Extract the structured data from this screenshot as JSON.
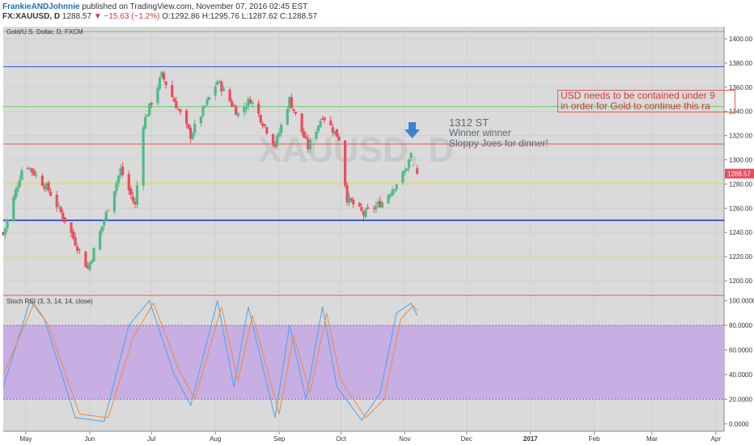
{
  "header": {
    "author": "FrankieANDJohnnie",
    "published": "published on TradingView.com, November 07, 2016 02:45 EST",
    "symbol": "FX:XAUUSD, D",
    "last": "1288.57",
    "change": "▼ −15.63 (−1.2%)",
    "ohlc": "O:1292.86 H:1295.76 L:1287.62 C:1288.57"
  },
  "main_pane": {
    "legend": "Gold/U.S. Dollar, D, FXCM",
    "last_price_label": "1288.57",
    "y_ticks": [
      "1200.00",
      "1220.00",
      "1240.00",
      "1260.00",
      "1280.00",
      "1300.00",
      "1320.00",
      "1340.00",
      "1360.00",
      "1380.00",
      "1400.00"
    ]
  },
  "rsi_pane": {
    "legend": "Stoch RSI (3, 3, 14, 14, close)",
    "y_ticks": [
      "0.0000",
      "20.0000",
      "40.0000",
      "60.0000",
      "80.0000",
      "100.0000"
    ]
  },
  "x_ticks": [
    "May",
    "Jun",
    "Jul",
    "Aug",
    "Sep",
    "Oct",
    "Nov",
    "Dec",
    "2017",
    "Feb",
    "Mar",
    "Apr"
  ],
  "annotations": {
    "target_line1": "1312 ST",
    "target_line2": "Winner winner",
    "target_line3": "Sloppy Joes for dinner!",
    "box_line1": "USD needs to be contained under 9",
    "box_line2": "in order for Gold to continue this ra"
  },
  "watermark": "XAUUSD, D",
  "colors": {
    "up": "#53b987",
    "down": "#eb4d5c",
    "rsi_k": "#4aa3f0",
    "rsi_d": "#f08a3c",
    "rsi_band": "#c7aee3"
  },
  "chart_data": [
    {
      "type": "candlestick",
      "title": "Gold/U.S. Dollar, D, FXCM",
      "x_range": [
        "2016-04-20",
        "2016-11-07"
      ],
      "ylim": [
        1190,
        1410
      ],
      "last": 1288.57,
      "path_keypoints": [
        {
          "date": "2016-04-20",
          "close": 1238
        },
        {
          "date": "2016-04-29",
          "close": 1292
        },
        {
          "date": "2016-05-02",
          "close": 1295
        },
        {
          "date": "2016-05-12",
          "close": 1275
        },
        {
          "date": "2016-05-20",
          "close": 1250
        },
        {
          "date": "2016-05-31",
          "close": 1210
        },
        {
          "date": "2016-06-06",
          "close": 1240
        },
        {
          "date": "2016-06-16",
          "close": 1292
        },
        {
          "date": "2016-06-23",
          "close": 1262
        },
        {
          "date": "2016-06-27",
          "close": 1330
        },
        {
          "date": "2016-07-06",
          "close": 1370
        },
        {
          "date": "2016-07-20",
          "close": 1320
        },
        {
          "date": "2016-08-02",
          "close": 1365
        },
        {
          "date": "2016-08-12",
          "close": 1338
        },
        {
          "date": "2016-08-18",
          "close": 1350
        },
        {
          "date": "2016-08-30",
          "close": 1312
        },
        {
          "date": "2016-09-06",
          "close": 1350
        },
        {
          "date": "2016-09-15",
          "close": 1310
        },
        {
          "date": "2016-09-22",
          "close": 1337
        },
        {
          "date": "2016-09-30",
          "close": 1318
        },
        {
          "date": "2016-10-04",
          "close": 1268
        },
        {
          "date": "2016-10-12",
          "close": 1255
        },
        {
          "date": "2016-10-21",
          "close": 1265
        },
        {
          "date": "2016-11-01",
          "close": 1290
        },
        {
          "date": "2016-11-04",
          "close": 1304
        },
        {
          "date": "2016-11-07",
          "close": 1288.57
        }
      ],
      "horizontal_lines": [
        {
          "price": 1406,
          "color": "#67c765"
        },
        {
          "price": 1377,
          "color": "#2f56d6"
        },
        {
          "price": 1344,
          "color": "#67c765"
        },
        {
          "price": 1313,
          "color": "#e05a5a"
        },
        {
          "price": 1281,
          "color": "#e6e05a"
        },
        {
          "price": 1250,
          "color": "#1f3fd6"
        },
        {
          "price": 1218,
          "color": "#e6e05a"
        },
        {
          "price": 1188,
          "color": "#e05a5a"
        }
      ]
    },
    {
      "type": "line",
      "title": "Stoch RSI (3, 3, 14, 14, close)",
      "ylim": [
        -6,
        105
      ],
      "band": [
        20,
        80
      ],
      "series": [
        {
          "name": "K",
          "x": [
            "2016-04-20",
            "2016-05-03",
            "2016-05-10",
            "2016-05-25",
            "2016-06-08",
            "2016-06-20",
            "2016-06-30",
            "2016-07-12",
            "2016-07-20",
            "2016-08-02",
            "2016-08-10",
            "2016-08-17",
            "2016-08-30",
            "2016-09-06",
            "2016-09-14",
            "2016-09-22",
            "2016-09-29",
            "2016-10-11",
            "2016-10-20",
            "2016-10-28",
            "2016-11-04",
            "2016-11-07"
          ],
          "values": [
            30,
            100,
            85,
            5,
            2,
            80,
            100,
            40,
            15,
            100,
            30,
            95,
            5,
            80,
            20,
            95,
            30,
            3,
            25,
            90,
            98,
            88
          ]
        },
        {
          "name": "D",
          "x": [
            "2016-04-20",
            "2016-05-05",
            "2016-05-12",
            "2016-05-27",
            "2016-06-10",
            "2016-06-22",
            "2016-07-02",
            "2016-07-14",
            "2016-07-22",
            "2016-08-04",
            "2016-08-12",
            "2016-08-19",
            "2016-09-01",
            "2016-09-08",
            "2016-09-16",
            "2016-09-24",
            "2016-10-01",
            "2016-10-13",
            "2016-10-22",
            "2016-10-30",
            "2016-11-05",
            "2016-11-07"
          ],
          "values": [
            40,
            98,
            80,
            8,
            5,
            70,
            98,
            45,
            20,
            95,
            35,
            88,
            8,
            72,
            25,
            90,
            35,
            5,
            20,
            85,
            96,
            92
          ]
        }
      ]
    }
  ]
}
